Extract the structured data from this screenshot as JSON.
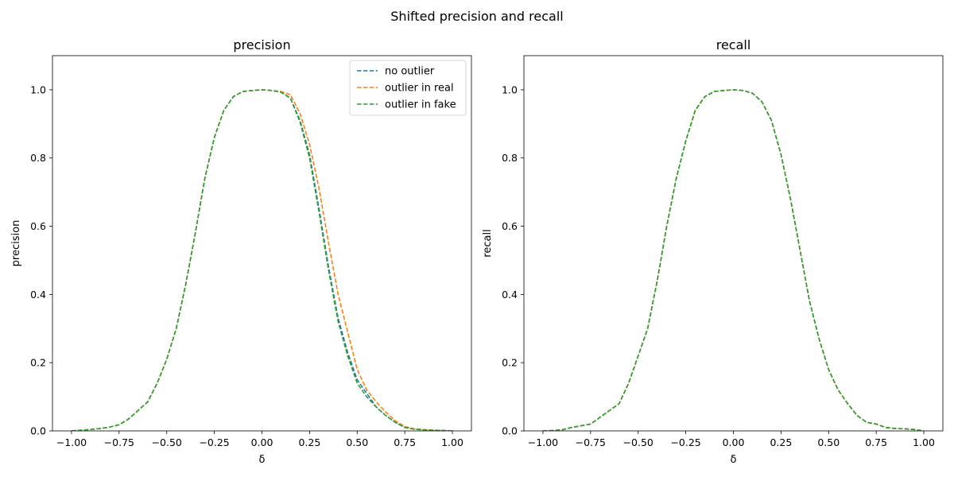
{
  "figure": {
    "suptitle": "Shifted precision and recall"
  },
  "chart_data": [
    {
      "type": "line",
      "title": "precision",
      "xlabel": "δ",
      "ylabel": "precision",
      "xlim": [
        -1.1,
        1.1
      ],
      "ylim": [
        0.0,
        1.1
      ],
      "xticks": [
        -1.0,
        -0.75,
        -0.5,
        -0.25,
        0.0,
        0.25,
        0.5,
        0.75,
        1.0
      ],
      "xtick_labels": [
        "−1.00",
        "−0.75",
        "−0.50",
        "−0.25",
        "0.00",
        "0.25",
        "0.50",
        "0.75",
        "1.00"
      ],
      "yticks": [
        0.0,
        0.2,
        0.4,
        0.6,
        0.8,
        1.0
      ],
      "ytick_labels": [
        "0.0",
        "0.2",
        "0.4",
        "0.6",
        "0.8",
        "1.0"
      ],
      "legend": {
        "show": true,
        "placement": "top-right"
      },
      "line_style": "dashed",
      "x": [
        -1.0,
        -0.95,
        -0.9,
        -0.85,
        -0.8,
        -0.75,
        -0.7,
        -0.65,
        -0.6,
        -0.55,
        -0.5,
        -0.45,
        -0.4,
        -0.35,
        -0.3,
        -0.25,
        -0.2,
        -0.15,
        -0.1,
        -0.05,
        0.0,
        0.05,
        0.1,
        0.15,
        0.2,
        0.25,
        0.3,
        0.35,
        0.4,
        0.45,
        0.5,
        0.55,
        0.6,
        0.65,
        0.7,
        0.75,
        0.8,
        0.85,
        0.9,
        0.95,
        1.0
      ],
      "series": [
        {
          "name": "no outlier",
          "color": "#1f77b4",
          "values": [
            0.0,
            0.002,
            0.004,
            0.007,
            0.011,
            0.018,
            0.035,
            0.06,
            0.085,
            0.14,
            0.21,
            0.3,
            0.43,
            0.58,
            0.74,
            0.86,
            0.94,
            0.98,
            0.995,
            0.998,
            1.0,
            0.998,
            0.993,
            0.975,
            0.91,
            0.81,
            0.65,
            0.48,
            0.33,
            0.23,
            0.15,
            0.11,
            0.07,
            0.045,
            0.025,
            0.01,
            0.005,
            0.003,
            0.002,
            0.001,
            0.0
          ]
        },
        {
          "name": "outlier in real",
          "color": "#ff7f0e",
          "values": [
            0.0,
            0.002,
            0.004,
            0.007,
            0.011,
            0.018,
            0.035,
            0.06,
            0.085,
            0.14,
            0.21,
            0.3,
            0.43,
            0.58,
            0.74,
            0.86,
            0.94,
            0.98,
            0.995,
            0.998,
            1.0,
            0.998,
            0.995,
            0.985,
            0.93,
            0.84,
            0.71,
            0.55,
            0.4,
            0.29,
            0.18,
            0.12,
            0.085,
            0.055,
            0.03,
            0.013,
            0.006,
            0.004,
            0.002,
            0.001,
            0.0
          ]
        },
        {
          "name": "outlier in fake",
          "color": "#2ca02c",
          "values": [
            0.0,
            0.002,
            0.004,
            0.007,
            0.011,
            0.018,
            0.035,
            0.06,
            0.085,
            0.14,
            0.21,
            0.3,
            0.43,
            0.58,
            0.74,
            0.86,
            0.94,
            0.98,
            0.995,
            0.998,
            1.0,
            0.998,
            0.993,
            0.975,
            0.905,
            0.8,
            0.64,
            0.47,
            0.32,
            0.22,
            0.14,
            0.1,
            0.07,
            0.045,
            0.025,
            0.01,
            0.005,
            0.003,
            0.002,
            0.001,
            0.0
          ]
        }
      ]
    },
    {
      "type": "line",
      "title": "recall",
      "xlabel": "δ",
      "ylabel": "recall",
      "xlim": [
        -1.1,
        1.1
      ],
      "ylim": [
        0.0,
        1.1
      ],
      "xticks": [
        -1.0,
        -0.75,
        -0.5,
        -0.25,
        0.0,
        0.25,
        0.5,
        0.75,
        1.0
      ],
      "xtick_labels": [
        "−1.00",
        "−0.75",
        "−0.50",
        "−0.25",
        "0.00",
        "0.25",
        "0.50",
        "0.75",
        "1.00"
      ],
      "yticks": [
        0.0,
        0.2,
        0.4,
        0.6,
        0.8,
        1.0
      ],
      "ytick_labels": [
        "0.0",
        "0.2",
        "0.4",
        "0.6",
        "0.8",
        "1.0"
      ],
      "legend": {
        "show": false
      },
      "line_style": "dashed",
      "x": [
        -1.0,
        -0.95,
        -0.9,
        -0.85,
        -0.8,
        -0.75,
        -0.7,
        -0.65,
        -0.6,
        -0.55,
        -0.5,
        -0.45,
        -0.4,
        -0.35,
        -0.3,
        -0.25,
        -0.2,
        -0.15,
        -0.1,
        -0.05,
        0.0,
        0.05,
        0.1,
        0.15,
        0.2,
        0.25,
        0.3,
        0.35,
        0.4,
        0.45,
        0.5,
        0.55,
        0.6,
        0.65,
        0.7,
        0.75,
        0.8,
        0.85,
        0.9,
        0.95,
        1.0
      ],
      "series": [
        {
          "name": "no outlier",
          "color": "#1f77b4",
          "values": [
            0.0,
            0.001,
            0.003,
            0.01,
            0.015,
            0.02,
            0.04,
            0.06,
            0.08,
            0.14,
            0.22,
            0.3,
            0.44,
            0.6,
            0.74,
            0.85,
            0.94,
            0.98,
            0.995,
            0.998,
            1.0,
            0.998,
            0.99,
            0.965,
            0.91,
            0.81,
            0.68,
            0.53,
            0.38,
            0.27,
            0.18,
            0.12,
            0.08,
            0.045,
            0.025,
            0.02,
            0.01,
            0.007,
            0.006,
            0.004,
            0.0
          ]
        },
        {
          "name": "outlier in real",
          "color": "#ff7f0e",
          "values": [
            0.0,
            0.001,
            0.003,
            0.01,
            0.015,
            0.02,
            0.04,
            0.06,
            0.08,
            0.14,
            0.22,
            0.3,
            0.44,
            0.6,
            0.74,
            0.85,
            0.94,
            0.98,
            0.995,
            0.998,
            1.0,
            0.998,
            0.99,
            0.965,
            0.91,
            0.81,
            0.68,
            0.53,
            0.38,
            0.27,
            0.18,
            0.12,
            0.08,
            0.045,
            0.025,
            0.02,
            0.01,
            0.007,
            0.006,
            0.004,
            0.0
          ]
        },
        {
          "name": "outlier in fake",
          "color": "#2ca02c",
          "values": [
            0.0,
            0.001,
            0.003,
            0.01,
            0.015,
            0.02,
            0.04,
            0.06,
            0.08,
            0.14,
            0.22,
            0.3,
            0.44,
            0.6,
            0.74,
            0.85,
            0.94,
            0.98,
            0.995,
            0.998,
            1.0,
            0.998,
            0.99,
            0.965,
            0.91,
            0.81,
            0.68,
            0.53,
            0.38,
            0.27,
            0.18,
            0.12,
            0.08,
            0.045,
            0.025,
            0.02,
            0.01,
            0.007,
            0.006,
            0.004,
            0.0
          ]
        }
      ]
    }
  ]
}
